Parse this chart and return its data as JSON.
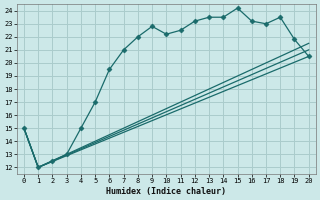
{
  "xlabel": "Humidex (Indice chaleur)",
  "bg_color": "#cce8e8",
  "grid_color": "#aacccc",
  "line_color": "#1a6b6b",
  "xlim": [
    -0.5,
    20.5
  ],
  "ylim": [
    11.5,
    24.5
  ],
  "yticks": [
    12,
    13,
    14,
    15,
    16,
    17,
    18,
    19,
    20,
    21,
    22,
    23,
    24
  ],
  "xticks": [
    0,
    1,
    2,
    3,
    4,
    5,
    6,
    7,
    8,
    9,
    10,
    11,
    12,
    13,
    14,
    15,
    16,
    17,
    18,
    19,
    20
  ],
  "series": [
    {
      "x": [
        0,
        1,
        2,
        3,
        4,
        5,
        6,
        7,
        8,
        9,
        10,
        11,
        12,
        13,
        14,
        15,
        16,
        17,
        18,
        19,
        20
      ],
      "y": [
        15,
        12,
        12.5,
        13,
        15,
        17,
        19.5,
        21,
        22,
        22.8,
        22.2,
        22.5,
        23.2,
        23.5,
        23.5,
        24.2,
        23.2,
        23,
        23.5,
        21.8,
        20.5
      ],
      "marker": "D",
      "markersize": 2.5
    },
    {
      "x": [
        0,
        1,
        20
      ],
      "y": [
        15,
        12,
        20.5
      ],
      "marker": null
    },
    {
      "x": [
        0,
        1,
        20
      ],
      "y": [
        15,
        12,
        21.0
      ],
      "marker": null
    },
    {
      "x": [
        0,
        1,
        20
      ],
      "y": [
        15,
        12,
        21.5
      ],
      "marker": null
    }
  ]
}
